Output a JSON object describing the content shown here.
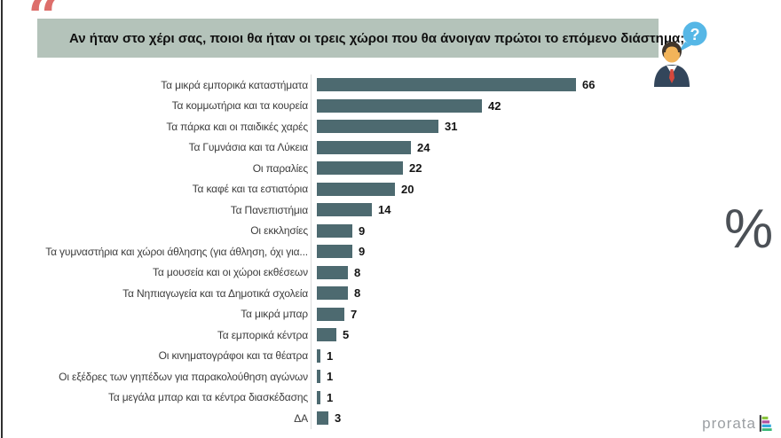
{
  "header": {
    "quote_mark": "“",
    "title": "Αν ήταν στο χέρι σας, ποιοι θα ήταν οι τρεις χώροι που θα άνοιγαν πρώτοι το επόμενο διάστημα;",
    "bubble_question_mark": "?"
  },
  "chart_data": {
    "type": "bar",
    "orientation": "horizontal",
    "title": "Αν ήταν στο χέρι σας, ποιοι θα ήταν οι τρεις χώροι που θα άνοιγαν πρώτοι το επόμενο διάστημα;",
    "unit": "%",
    "grid": false,
    "value_labels": "end-of-bar",
    "xlim": [
      0,
      70
    ],
    "bar_color": "#4d6a70",
    "categories": [
      "Τα μικρά εμπορικά καταστήματα",
      "Τα κομμωτήρια και τα κουρεία",
      "Τα πάρκα και οι παιδικές χαρές",
      "Τα Γυμνάσια και τα Λύκεια",
      "Οι παραλίες",
      "Τα καφέ και τα εστιατόρια",
      "Τα Πανεπιστήμια",
      "Οι εκκλησίες",
      "Τα γυμναστήρια και χώροι άθλησης (για άθληση, όχι για...",
      "Τα μουσεία και οι χώροι εκθέσεων",
      "Τα Νηπιαγωγεία και τα Δημοτικά σχολεία",
      "Τα μικρά μπαρ",
      "Τα εμπορικά κέντρα",
      "Οι κινηματογράφοι και τα θέατρα",
      "Οι εξέδρες των γηπέδων για παρακολούθηση αγώνων",
      "Τα μεγάλα μπαρ και τα κέντρα διασκέδασης",
      "ΔΑ"
    ],
    "values": [
      66,
      42,
      31,
      24,
      22,
      20,
      14,
      9,
      9,
      8,
      8,
      7,
      5,
      1,
      1,
      1,
      3
    ]
  },
  "percent_symbol": "%",
  "branding": {
    "logo_text": "prorata",
    "icon_colors": [
      "#8bc53f",
      "#b0509c",
      "#2fa8dd",
      "#3cb878"
    ]
  },
  "colors": {
    "bar": "#4d6a70",
    "title_bg": "#b4c3ba",
    "quote": "#dd6e6b",
    "bubble": "#56b7e6",
    "percent": "#4b5056",
    "left_border": "#2f2f2f",
    "suit": "#33465b",
    "tie": "#d6483c",
    "face": "#f2b45a",
    "hair": "#41362b"
  }
}
